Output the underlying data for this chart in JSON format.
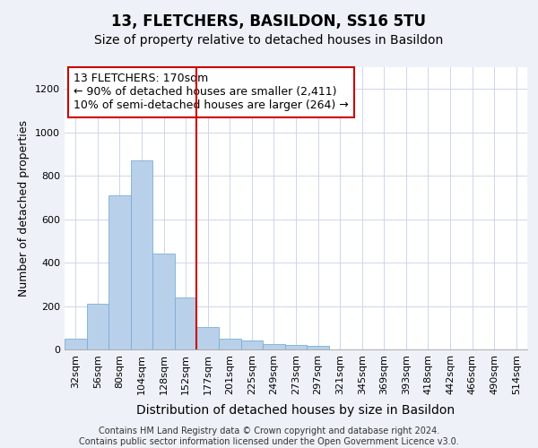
{
  "title": "13, FLETCHERS, BASILDON, SS16 5TU",
  "subtitle": "Size of property relative to detached houses in Basildon",
  "xlabel": "Distribution of detached houses by size in Basildon",
  "ylabel": "Number of detached properties",
  "categories": [
    "32sqm",
    "56sqm",
    "80sqm",
    "104sqm",
    "128sqm",
    "152sqm",
    "177sqm",
    "201sqm",
    "225sqm",
    "249sqm",
    "273sqm",
    "297sqm",
    "321sqm",
    "345sqm",
    "369sqm",
    "393sqm",
    "418sqm",
    "442sqm",
    "466sqm",
    "490sqm",
    "514sqm"
  ],
  "bar_values": [
    50,
    210,
    710,
    870,
    440,
    240,
    105,
    50,
    40,
    25,
    20,
    15,
    0,
    0,
    0,
    0,
    0,
    0,
    0,
    0,
    0
  ],
  "bar_color": "#b8d0ea",
  "bar_edge_color": "#7aafd4",
  "vline_pos": 6.0,
  "vline_color": "#cc0000",
  "annotation_text": "13 FLETCHERS: 170sqm\n← 90% of detached houses are smaller (2,411)\n10% of semi-detached houses are larger (264) →",
  "annotation_box_color": "#ffffff",
  "annotation_box_edge_color": "#cc0000",
  "ylim": [
    0,
    1300
  ],
  "yticks": [
    0,
    200,
    400,
    600,
    800,
    1000,
    1200
  ],
  "footer_text": "Contains HM Land Registry data © Crown copyright and database right 2024.\nContains public sector information licensed under the Open Government Licence v3.0.",
  "bg_color": "#eef2f8",
  "plot_bg_color": "#ffffff",
  "grid_color": "#cdd6e8",
  "title_fontsize": 12,
  "subtitle_fontsize": 10,
  "tick_fontsize": 8,
  "ylabel_fontsize": 9,
  "xlabel_fontsize": 10,
  "footer_fontsize": 7,
  "annotation_fontsize": 9
}
